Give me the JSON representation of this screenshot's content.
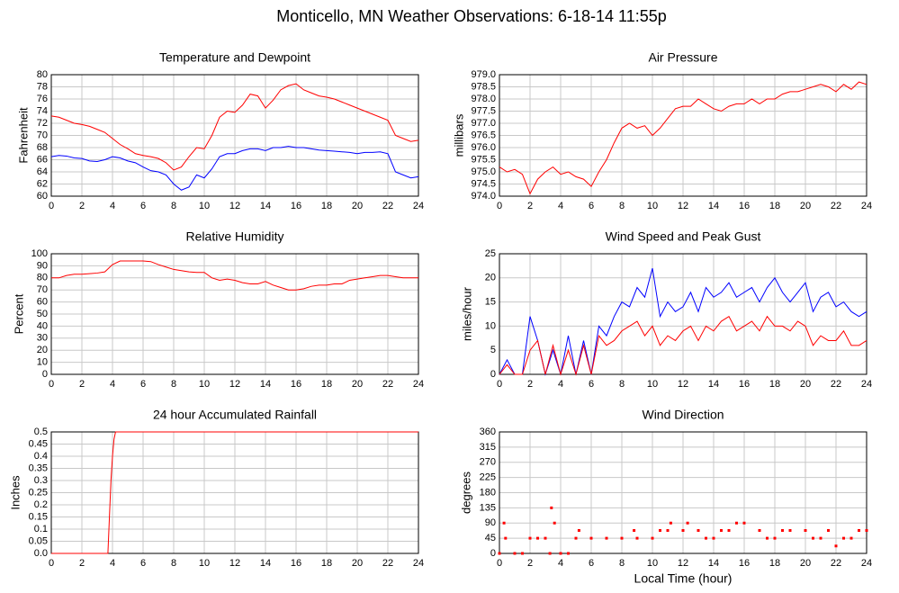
{
  "title": "Monticello, MN Weather Observations: 6-18-14 11:55p",
  "chart_data": [
    {
      "type": "line",
      "title": "Temperature and Dewpoint",
      "ylabel": "Fahrenheit",
      "x": [
        0,
        0.5,
        1,
        1.5,
        2,
        2.5,
        3,
        3.5,
        4,
        4.5,
        5,
        5.5,
        6,
        6.5,
        7,
        7.5,
        8,
        8.5,
        9,
        9.5,
        10,
        10.5,
        11,
        11.5,
        12,
        12.5,
        13,
        13.5,
        14,
        14.5,
        15,
        15.5,
        16,
        16.5,
        17,
        17.5,
        18,
        18.5,
        19,
        19.5,
        20,
        20.5,
        21,
        21.5,
        22,
        22.5,
        23,
        23.5,
        24
      ],
      "series": [
        {
          "color": "#ff0000",
          "values": [
            73.2,
            73,
            72.5,
            72,
            71.8,
            71.5,
            71,
            70.5,
            69.5,
            68.5,
            67.8,
            67,
            66.7,
            66.5,
            66.2,
            65.5,
            64.3,
            64.8,
            66.5,
            68,
            67.8,
            70,
            73,
            74,
            73.8,
            75,
            76.8,
            76.5,
            74.5,
            75.8,
            77.5,
            78.2,
            78.5,
            77.5,
            77,
            76.5,
            76.3,
            76,
            75.5,
            75,
            74.5,
            74,
            73.5,
            73,
            72.5,
            70,
            69.5,
            69,
            69.2
          ]
        },
        {
          "color": "#0000ff",
          "values": [
            66.5,
            66.7,
            66.6,
            66.3,
            66.2,
            65.8,
            65.7,
            66,
            66.5,
            66.3,
            65.8,
            65.5,
            64.8,
            64.2,
            64,
            63.5,
            62,
            61,
            61.5,
            63.5,
            63,
            64.5,
            66.5,
            67,
            67,
            67.5,
            67.8,
            67.8,
            67.5,
            68,
            68,
            68.2,
            68,
            68,
            67.8,
            67.6,
            67.5,
            67.4,
            67.3,
            67.2,
            67,
            67.2,
            67.2,
            67.3,
            67,
            64,
            63.5,
            63,
            63.2
          ]
        }
      ],
      "xlim": [
        0,
        24
      ],
      "xticks": [
        0,
        2,
        4,
        6,
        8,
        10,
        12,
        14,
        16,
        18,
        20,
        22,
        24
      ],
      "ylim": [
        60,
        80
      ],
      "yticks": [
        60,
        62,
        64,
        66,
        68,
        70,
        72,
        74,
        76,
        78,
        80
      ],
      "grid": true
    },
    {
      "type": "line",
      "title": "Air Pressure",
      "ylabel": "millibars",
      "x": [
        0,
        0.5,
        1,
        1.5,
        2,
        2.5,
        3,
        3.5,
        4,
        4.5,
        5,
        5.5,
        6,
        6.5,
        7,
        7.5,
        8,
        8.5,
        9,
        9.5,
        10,
        10.5,
        11,
        11.5,
        12,
        12.5,
        13,
        13.5,
        14,
        14.5,
        15,
        15.5,
        16,
        16.5,
        17,
        17.5,
        18,
        18.5,
        19,
        19.5,
        20,
        20.5,
        21,
        21.5,
        22,
        22.5,
        23,
        23.5,
        24
      ],
      "series": [
        {
          "color": "#ff0000",
          "values": [
            975.2,
            975,
            975.1,
            974.9,
            974.1,
            974.7,
            975,
            975.2,
            974.9,
            975,
            974.8,
            974.7,
            974.4,
            975,
            975.5,
            976.2,
            976.8,
            977,
            976.8,
            976.9,
            976.5,
            976.8,
            977.2,
            977.6,
            977.7,
            977.7,
            978,
            977.8,
            977.6,
            977.5,
            977.7,
            977.8,
            977.8,
            978,
            977.8,
            978,
            978,
            978.2,
            978.3,
            978.3,
            978.4,
            978.5,
            978.6,
            978.5,
            978.3,
            978.6,
            978.4,
            978.7,
            978.6
          ]
        }
      ],
      "xlim": [
        0,
        24
      ],
      "xticks": [
        0,
        2,
        4,
        6,
        8,
        10,
        12,
        14,
        16,
        18,
        20,
        22,
        24
      ],
      "ylim": [
        974,
        979
      ],
      "yticks": [
        {
          "value": 974,
          "label": "974.0"
        },
        974.5,
        {
          "value": 975,
          "label": "975.0"
        },
        975.5,
        {
          "value": 976,
          "label": "976.0"
        },
        976.5,
        {
          "value": 977,
          "label": "977.0"
        },
        977.5,
        {
          "value": 978,
          "label": "978.0"
        },
        978.5,
        {
          "value": 979,
          "label": "979.0"
        }
      ],
      "grid": true
    },
    {
      "type": "line",
      "title": "Relative Humidity",
      "ylabel": "Percent",
      "x": [
        0,
        0.5,
        1,
        1.5,
        2,
        2.5,
        3,
        3.5,
        4,
        4.5,
        5,
        5.5,
        6,
        6.5,
        7,
        7.5,
        8,
        8.5,
        9,
        9.5,
        10,
        10.5,
        11,
        11.5,
        12,
        12.5,
        13,
        13.5,
        14,
        14.5,
        15,
        15.5,
        16,
        16.5,
        17,
        17.5,
        18,
        18.5,
        19,
        19.5,
        20,
        20.5,
        21,
        21.5,
        22,
        22.5,
        23,
        23.5,
        24
      ],
      "series": [
        {
          "color": "#ff0000",
          "values": [
            80,
            80,
            82,
            83,
            83,
            83.5,
            84,
            85,
            91,
            94,
            94,
            94,
            94,
            93.5,
            91,
            89,
            87,
            86,
            85,
            84.5,
            84.5,
            80,
            78,
            79,
            78,
            76,
            75,
            75,
            77,
            74,
            72,
            70,
            70,
            71,
            73,
            74,
            74,
            75,
            75,
            78,
            79,
            80,
            81,
            82,
            82,
            81,
            80,
            80,
            80
          ]
        }
      ],
      "xlim": [
        0,
        24
      ],
      "xticks": [
        0,
        2,
        4,
        6,
        8,
        10,
        12,
        14,
        16,
        18,
        20,
        22,
        24
      ],
      "ylim": [
        0,
        100
      ],
      "yticks": [
        0,
        10,
        20,
        30,
        40,
        50,
        60,
        70,
        80,
        90,
        100
      ],
      "grid": true
    },
    {
      "type": "line",
      "title": "Wind Speed and Peak Gust",
      "ylabel": "miles/hour",
      "x": [
        0,
        0.5,
        1,
        1.5,
        2,
        2.5,
        3,
        3.5,
        4,
        4.5,
        5,
        5.5,
        6,
        6.5,
        7,
        7.5,
        8,
        8.5,
        9,
        9.5,
        10,
        10.5,
        11,
        11.5,
        12,
        12.5,
        13,
        13.5,
        14,
        14.5,
        15,
        15.5,
        16,
        16.5,
        17,
        17.5,
        18,
        18.5,
        19,
        19.5,
        20,
        20.5,
        21,
        21.5,
        22,
        22.5,
        23,
        23.5,
        24
      ],
      "series": [
        {
          "color": "#0000ff",
          "values": [
            0,
            3,
            0,
            0,
            12,
            7,
            0,
            5,
            0,
            8,
            0,
            7,
            0,
            10,
            8,
            12,
            15,
            14,
            18,
            16,
            22,
            12,
            15,
            13,
            14,
            17,
            13,
            18,
            16,
            17,
            19,
            16,
            17,
            18,
            15,
            18,
            20,
            17,
            15,
            17,
            19,
            13,
            16,
            17,
            14,
            15,
            13,
            12,
            13
          ]
        },
        {
          "color": "#ff0000",
          "values": [
            0,
            2,
            0,
            0,
            5,
            7,
            0,
            6,
            0,
            5,
            0,
            6,
            0,
            8,
            6,
            7,
            9,
            10,
            11,
            8,
            10,
            6,
            8,
            7,
            9,
            10,
            7,
            10,
            9,
            11,
            12,
            9,
            10,
            11,
            9,
            12,
            10,
            10,
            9,
            11,
            10,
            6,
            8,
            7,
            7,
            9,
            6,
            6,
            7
          ]
        }
      ],
      "xlim": [
        0,
        24
      ],
      "xticks": [
        0,
        2,
        4,
        6,
        8,
        10,
        12,
        14,
        16,
        18,
        20,
        22,
        24
      ],
      "ylim": [
        0,
        25
      ],
      "yticks": [
        0,
        5,
        10,
        15,
        20,
        25
      ],
      "grid": true
    },
    {
      "type": "line",
      "title": "24 hour Accumulated Rainfall",
      "ylabel": "Inches",
      "x": [
        0,
        3.7,
        3.8,
        3.9,
        4,
        4.1,
        4.2,
        24
      ],
      "series": [
        {
          "color": "#ff0000",
          "values": [
            0,
            0,
            0.15,
            0.3,
            0.4,
            0.47,
            0.5,
            0.5
          ]
        }
      ],
      "xlim": [
        0,
        24
      ],
      "xticks": [
        0,
        2,
        4,
        6,
        8,
        10,
        12,
        14,
        16,
        18,
        20,
        22,
        24
      ],
      "ylim": [
        0,
        0.5
      ],
      "yticks": [
        {
          "value": 0,
          "label": "0.0"
        },
        0.05,
        0.1,
        0.15,
        0.2,
        0.25,
        0.3,
        0.35,
        0.4,
        0.45,
        0.5
      ],
      "grid": true
    },
    {
      "type": "scatter",
      "title": "Wind Direction",
      "ylabel": "degrees",
      "xlabel": "Local Time (hour)",
      "color": "#ff0000",
      "x": [
        0,
        0.3,
        0.4,
        1,
        1.5,
        2,
        2.5,
        3,
        3.3,
        3.4,
        3.6,
        4,
        4.5,
        5,
        5.2,
        6,
        7,
        8,
        8.8,
        9,
        10,
        10.5,
        11,
        11.2,
        12,
        12.3,
        13,
        13.5,
        14,
        14.5,
        15,
        15.5,
        16,
        17,
        17.5,
        18,
        18.5,
        19,
        20,
        20.5,
        21,
        21.5,
        22,
        22.5,
        23,
        23.5,
        24
      ],
      "values": [
        0,
        90,
        45,
        0,
        0,
        45,
        45,
        45,
        0,
        135,
        90,
        0,
        0,
        45,
        68,
        45,
        45,
        45,
        68,
        45,
        45,
        68,
        68,
        90,
        68,
        90,
        68,
        45,
        45,
        68,
        68,
        90,
        90,
        68,
        45,
        45,
        68,
        68,
        68,
        45,
        45,
        68,
        22,
        45,
        45,
        68,
        68
      ],
      "xlim": [
        0,
        24
      ],
      "xticks": [
        0,
        2,
        4,
        6,
        8,
        10,
        12,
        14,
        16,
        18,
        20,
        22,
        24
      ],
      "ylim": [
        0,
        360
      ],
      "yticks": [
        0,
        45,
        90,
        135,
        180,
        225,
        270,
        315,
        360
      ],
      "grid": true
    }
  ]
}
